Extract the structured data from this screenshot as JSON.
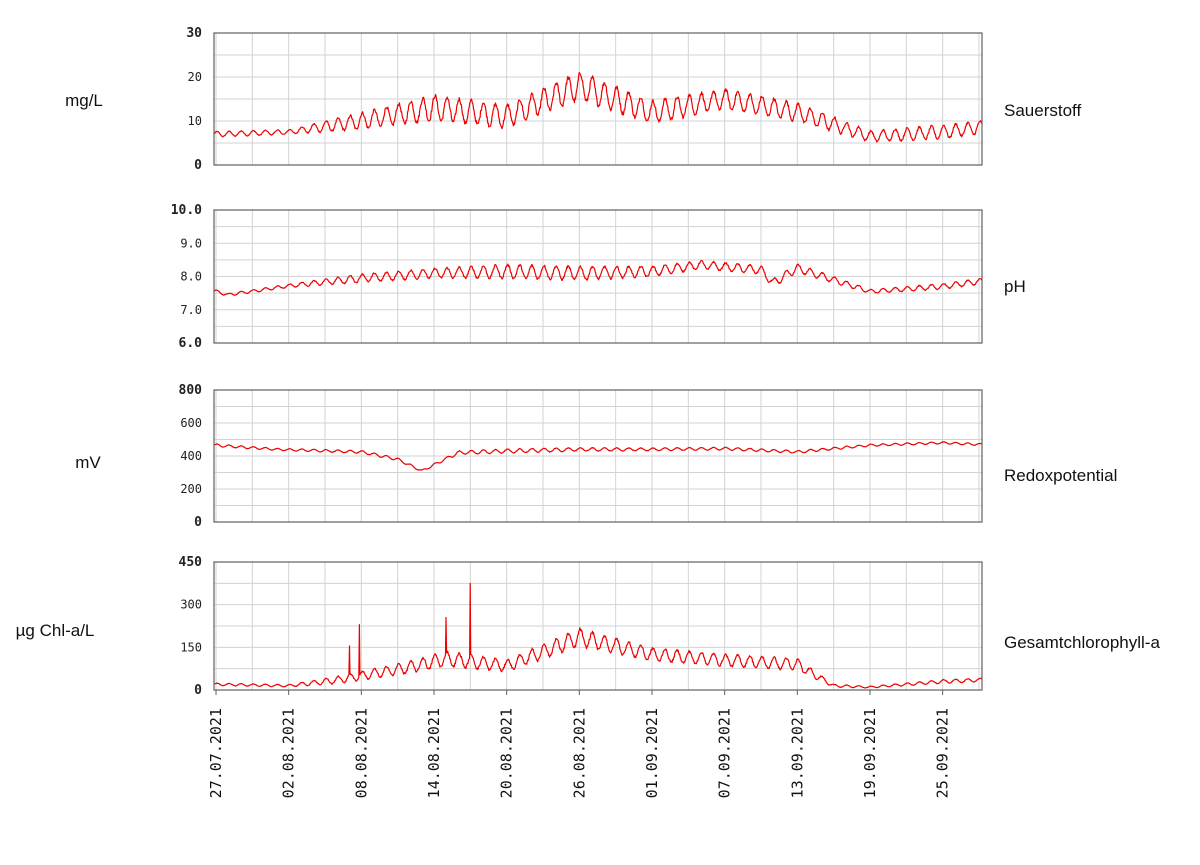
{
  "chart_data": [
    {
      "type": "line",
      "series_name": "Sauerstoff",
      "ylabel": "mg/L",
      "ylim": [
        0,
        30
      ],
      "y_ticks": [
        0,
        10,
        20,
        30
      ],
      "y_tick_labels": [
        "0",
        "10",
        "20",
        "30"
      ],
      "y_tick_bold": [
        true,
        false,
        false,
        true
      ],
      "grid": true,
      "color": "#ee0000",
      "x": [
        "2021-07-27",
        "2021-08-02",
        "2021-08-08",
        "2021-08-14",
        "2021-08-20",
        "2021-08-26",
        "2021-09-01",
        "2021-09-07",
        "2021-09-13",
        "2021-09-19",
        "2021-09-25",
        "2021-09-28"
      ],
      "values": [
        7,
        7.5,
        10,
        13,
        11,
        18,
        12,
        15,
        12,
        6.5,
        7.5,
        8.5
      ],
      "amplitude": [
        0.6,
        0.5,
        1.8,
        2.8,
        2.5,
        3.0,
        2.5,
        2.2,
        2.0,
        1.2,
        1.5,
        1.4
      ]
    },
    {
      "type": "line",
      "series_name": "pH",
      "ylabel": "",
      "ylim": [
        6,
        10
      ],
      "y_ticks": [
        6,
        7,
        8,
        9,
        10
      ],
      "y_tick_labels": [
        "6.0",
        "7.0",
        "8.0",
        "9.0",
        "10.0"
      ],
      "y_tick_bold": [
        true,
        false,
        false,
        false,
        true
      ],
      "grid": true,
      "color": "#ee0000",
      "x": [
        "2021-07-27",
        "2021-07-28",
        "2021-08-02",
        "2021-08-08",
        "2021-08-14",
        "2021-08-20",
        "2021-08-26",
        "2021-09-01",
        "2021-09-05",
        "2021-09-10",
        "2021-09-11",
        "2021-09-13",
        "2021-09-19",
        "2021-09-25",
        "2021-09-28"
      ],
      "values": [
        7.55,
        7.45,
        7.72,
        7.95,
        8.1,
        8.15,
        8.1,
        8.15,
        8.35,
        8.2,
        7.8,
        8.25,
        7.55,
        7.7,
        7.85
      ],
      "amplitude": [
        0.05,
        0.04,
        0.05,
        0.12,
        0.14,
        0.2,
        0.2,
        0.15,
        0.12,
        0.12,
        0.12,
        0.12,
        0.06,
        0.08,
        0.08
      ]
    },
    {
      "type": "line",
      "series_name": "Redoxpotential",
      "ylabel": "mV",
      "ylim": [
        0,
        800
      ],
      "y_ticks": [
        0,
        200,
        400,
        600,
        800
      ],
      "y_tick_labels": [
        "0",
        "200",
        "400",
        "600",
        "800"
      ],
      "y_tick_bold": [
        true,
        false,
        false,
        false,
        true
      ],
      "grid": true,
      "color": "#ee0000",
      "x": [
        "2021-07-27",
        "2021-08-01",
        "2021-08-08",
        "2021-08-11",
        "2021-08-13",
        "2021-08-16",
        "2021-08-20",
        "2021-08-26",
        "2021-09-01",
        "2021-09-07",
        "2021-09-13",
        "2021-09-19",
        "2021-09-25",
        "2021-09-28"
      ],
      "values": [
        465,
        440,
        425,
        380,
        310,
        420,
        430,
        440,
        440,
        445,
        425,
        465,
        480,
        470
      ],
      "amplitude": [
        8,
        6,
        8,
        8,
        6,
        10,
        12,
        10,
        8,
        8,
        8,
        6,
        6,
        6
      ]
    },
    {
      "type": "line",
      "series_name": "Gesamtchlorophyll-a",
      "ylabel": "µg Chl-a/L",
      "ylim": [
        0,
        450
      ],
      "y_ticks": [
        0,
        150,
        300,
        450
      ],
      "y_tick_labels": [
        "0",
        "150",
        "300",
        "450"
      ],
      "y_tick_bold": [
        true,
        false,
        false,
        true
      ],
      "grid": true,
      "color": "#ee0000",
      "x": [
        "2021-07-27",
        "2021-08-02",
        "2021-08-06",
        "2021-08-12",
        "2021-08-15",
        "2021-08-20",
        "2021-08-26",
        "2021-09-01",
        "2021-09-07",
        "2021-09-13",
        "2021-09-16",
        "2021-09-19",
        "2021-09-25",
        "2021-09-28"
      ],
      "values": [
        20,
        15,
        35,
        80,
        110,
        85,
        185,
        125,
        105,
        90,
        15,
        10,
        30,
        35
      ],
      "amplitude": [
        4,
        4,
        12,
        20,
        25,
        20,
        30,
        22,
        20,
        20,
        5,
        3,
        6,
        6
      ],
      "spikes": [
        {
          "x": "2021-08-07",
          "value": 155
        },
        {
          "x": "2021-08-07T20:00",
          "value": 230
        },
        {
          "x": "2021-08-15",
          "value": 255
        },
        {
          "x": "2021-08-17",
          "value": 375
        }
      ]
    }
  ],
  "x_axis": {
    "type": "date",
    "range": [
      "2021-07-26T20:00",
      "2021-09-28T06:00"
    ],
    "tick_dates": [
      "2021-07-27",
      "2021-08-02",
      "2021-08-08",
      "2021-08-14",
      "2021-08-20",
      "2021-08-26",
      "2021-09-01",
      "2021-09-07",
      "2021-09-13",
      "2021-09-19",
      "2021-09-25"
    ],
    "tick_labels": [
      "27.07.2021",
      "02.08.2021",
      "08.08.2021",
      "14.08.2021",
      "20.08.2021",
      "26.08.2021",
      "01.09.2021",
      "07.09.2021",
      "13.09.2021",
      "19.09.2021",
      "25.09.2021"
    ],
    "minor_grid_days": 3
  },
  "colors": {
    "line": "#ee0000",
    "grid": "#d3d3d3",
    "frame": "#606060"
  }
}
